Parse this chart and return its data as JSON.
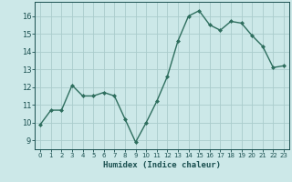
{
  "x": [
    0,
    1,
    2,
    3,
    4,
    5,
    6,
    7,
    8,
    9,
    10,
    11,
    12,
    13,
    14,
    15,
    16,
    17,
    18,
    19,
    20,
    21,
    22,
    23
  ],
  "y": [
    9.9,
    10.7,
    10.7,
    12.1,
    11.5,
    11.5,
    11.7,
    11.5,
    10.2,
    8.9,
    10.0,
    11.2,
    12.6,
    14.6,
    16.0,
    16.3,
    15.5,
    15.2,
    15.7,
    15.6,
    14.9,
    14.3,
    13.1,
    13.2
  ],
  "xlabel": "Humidex (Indice chaleur)",
  "xlim": [
    -0.5,
    23.5
  ],
  "ylim": [
    8.5,
    16.8
  ],
  "yticks": [
    9,
    10,
    11,
    12,
    13,
    14,
    15,
    16
  ],
  "xticks": [
    0,
    1,
    2,
    3,
    4,
    5,
    6,
    7,
    8,
    9,
    10,
    11,
    12,
    13,
    14,
    15,
    16,
    17,
    18,
    19,
    20,
    21,
    22,
    23
  ],
  "line_color": "#2e6e5e",
  "marker_color": "#2e6e5e",
  "bg_color": "#cce8e8",
  "grid_color": "#aacccc",
  "axis_label_color": "#1a5050",
  "tick_color": "#1a5050"
}
